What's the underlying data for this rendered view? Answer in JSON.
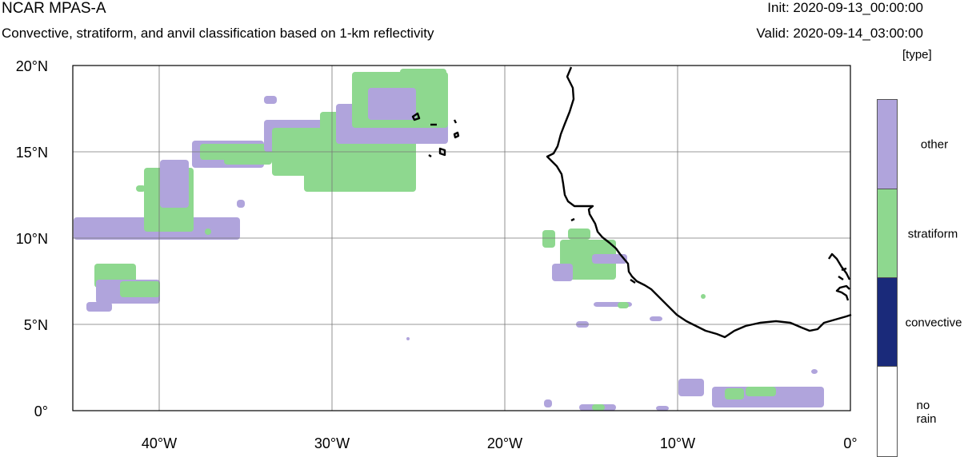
{
  "header": {
    "title": "NCAR MPAS-A",
    "subtitle": "Convective, stratiform, and anvil classification based on 1-km reflectivity",
    "init": "Init: 2020-09-13_00:00:00",
    "valid": "Valid: 2020-09-14_03:00:00",
    "units": "[type]"
  },
  "map": {
    "lon_range": [
      -45,
      0
    ],
    "lat_range": [
      0,
      20
    ],
    "grid": true,
    "x_ticks": [
      {
        "v": -40,
        "label": "40°W"
      },
      {
        "v": -30,
        "label": "30°W"
      },
      {
        "v": -20,
        "label": "20°W"
      },
      {
        "v": -10,
        "label": "10°W"
      },
      {
        "v": 0,
        "label": "0°"
      }
    ],
    "y_ticks": [
      {
        "v": 20,
        "label": "20°N"
      },
      {
        "v": 15,
        "label": "15°N"
      },
      {
        "v": 10,
        "label": "10°N"
      },
      {
        "v": 5,
        "label": "5°N"
      },
      {
        "v": 0,
        "label": "0°"
      }
    ]
  },
  "legend": {
    "items": [
      {
        "label": "other",
        "color": "#b0a4dc"
      },
      {
        "label": "stratiform",
        "color": "#8ed88f"
      },
      {
        "label": "convective",
        "color": "#1a2a7a"
      },
      {
        "label": "no rain",
        "color": "#ffffff"
      }
    ]
  }
}
